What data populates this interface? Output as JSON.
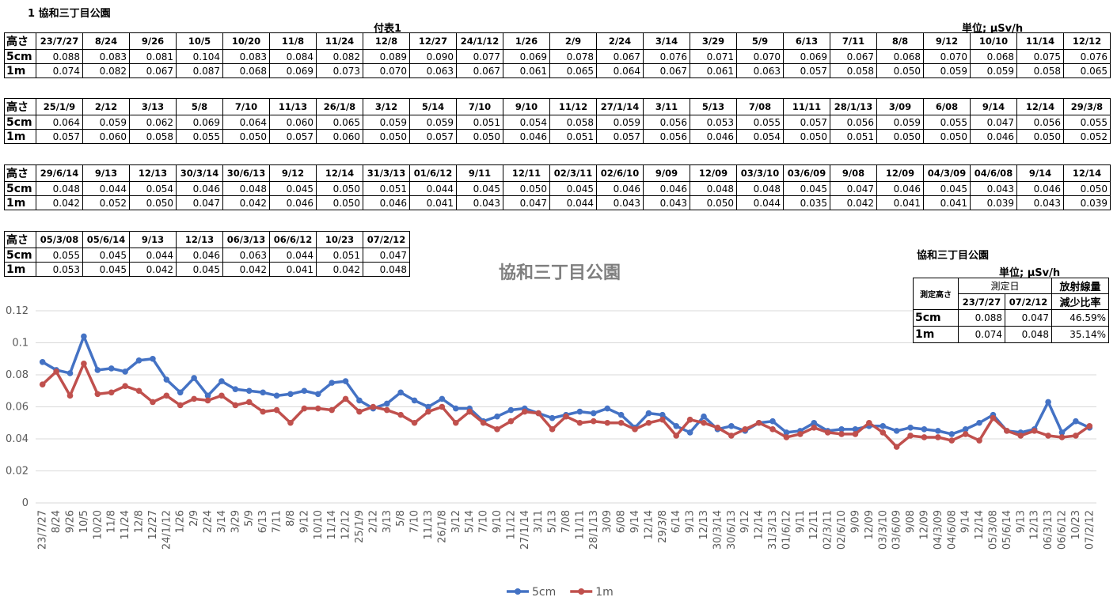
{
  "header": {
    "title": "1 協和三丁目公園",
    "subtitle": "付表1",
    "unit": "単位; μSv/h"
  },
  "tables": [
    {
      "row_labels": [
        "高さ",
        "5cm",
        "1m"
      ],
      "dates": [
        "23/7/27",
        "8/24",
        "9/26",
        "10/5",
        "10/20",
        "11/8",
        "11/24",
        "12/8",
        "12/27",
        "24/1/12",
        "1/26",
        "2/9",
        "2/24",
        "3/14",
        "3/29",
        "5/9",
        "6/13",
        "7/11",
        "8/8",
        "9/12",
        "10/10",
        "11/14",
        "12/12"
      ],
      "rows": [
        [
          "0.088",
          "0.083",
          "0.081",
          "0.104",
          "0.083",
          "0.084",
          "0.082",
          "0.089",
          "0.090",
          "0.077",
          "0.069",
          "0.078",
          "0.067",
          "0.076",
          "0.071",
          "0.070",
          "0.069",
          "0.067",
          "0.068",
          "0.070",
          "0.068",
          "0.075",
          "0.076"
        ],
        [
          "0.074",
          "0.082",
          "0.067",
          "0.087",
          "0.068",
          "0.069",
          "0.073",
          "0.070",
          "0.063",
          "0.067",
          "0.061",
          "0.065",
          "0.064",
          "0.067",
          "0.061",
          "0.063",
          "0.057",
          "0.058",
          "0.050",
          "0.059",
          "0.059",
          "0.058",
          "0.065"
        ]
      ]
    },
    {
      "row_labels": [
        "高さ",
        "5cm",
        "1m"
      ],
      "dates": [
        "25/1/9",
        "2/12",
        "3/13",
        "5/8",
        "7/10",
        "11/13",
        "26/1/8",
        "3/12",
        "5/14",
        "7/10",
        "9/10",
        "11/12",
        "27/1/14",
        "3/11",
        "5/13",
        "7/08",
        "11/11",
        "28/1/13",
        "3/09",
        "6/08",
        "9/14",
        "12/14",
        "29/3/8"
      ],
      "rows": [
        [
          "0.064",
          "0.059",
          "0.062",
          "0.069",
          "0.064",
          "0.060",
          "0.065",
          "0.059",
          "0.059",
          "0.051",
          "0.054",
          "0.058",
          "0.059",
          "0.056",
          "0.053",
          "0.055",
          "0.057",
          "0.056",
          "0.059",
          "0.055",
          "0.047",
          "0.056",
          "0.055"
        ],
        [
          "0.057",
          "0.060",
          "0.058",
          "0.055",
          "0.050",
          "0.057",
          "0.060",
          "0.050",
          "0.057",
          "0.050",
          "0.046",
          "0.051",
          "0.057",
          "0.056",
          "0.046",
          "0.054",
          "0.050",
          "0.051",
          "0.050",
          "0.050",
          "0.046",
          "0.050",
          "0.052"
        ]
      ]
    },
    {
      "row_labels": [
        "高さ",
        "5cm",
        "1m"
      ],
      "dates": [
        "29/6/14",
        "9/13",
        "12/13",
        "30/3/14",
        "30/6/13",
        "9/12",
        "12/14",
        "31/3/13",
        "01/6/12",
        "9/11",
        "12/11",
        "02/3/11",
        "02/6/10",
        "9/09",
        "12/09",
        "03/3/10",
        "03/6/09",
        "9/08",
        "12/09",
        "04/3/09",
        "04/6/08",
        "9/14",
        "12/14"
      ],
      "rows": [
        [
          "0.048",
          "0.044",
          "0.054",
          "0.046",
          "0.048",
          "0.045",
          "0.050",
          "0.051",
          "0.044",
          "0.045",
          "0.050",
          "0.045",
          "0.046",
          "0.046",
          "0.048",
          "0.048",
          "0.045",
          "0.047",
          "0.046",
          "0.045",
          "0.043",
          "0.046",
          "0.050"
        ],
        [
          "0.042",
          "0.052",
          "0.050",
          "0.047",
          "0.042",
          "0.046",
          "0.050",
          "0.046",
          "0.041",
          "0.043",
          "0.047",
          "0.044",
          "0.043",
          "0.043",
          "0.050",
          "0.044",
          "0.035",
          "0.042",
          "0.041",
          "0.041",
          "0.039",
          "0.043",
          "0.039"
        ]
      ]
    },
    {
      "row_labels": [
        "高さ",
        "5cm",
        "1m"
      ],
      "dates": [
        "05/3/08",
        "05/6/14",
        "9/13",
        "12/13",
        "06/3/13",
        "06/6/12",
        "10/23",
        "07/2/12"
      ],
      "rows": [
        [
          "0.055",
          "0.045",
          "0.044",
          "0.046",
          "0.063",
          "0.044",
          "0.051",
          "0.047"
        ],
        [
          "0.053",
          "0.045",
          "0.042",
          "0.045",
          "0.042",
          "0.041",
          "0.042",
          "0.048"
        ]
      ]
    }
  ],
  "summary": {
    "title": "協和三丁目公園",
    "unit": "単位; μSv/h",
    "headers": {
      "height": "測定高さ",
      "date": "測定日",
      "ratio": [
        "放射線量",
        "減少比率"
      ]
    },
    "dates": [
      "23/7/27",
      "07/2/12"
    ],
    "rows": [
      {
        "label": "5cm",
        "values": [
          "0.088",
          "0.047",
          "46.59%"
        ]
      },
      {
        "label": "1m",
        "values": [
          "0.074",
          "0.048",
          "35.14%"
        ]
      }
    ]
  },
  "chart_data": {
    "type": "line",
    "title": "協和三丁目公園",
    "categories": [
      "23/7/27",
      "8/24",
      "9/26",
      "10/5",
      "10/20",
      "11/8",
      "11/24",
      "12/8",
      "12/27",
      "24/1/12",
      "1/26",
      "2/9",
      "2/24",
      "3/14",
      "3/29",
      "5/9",
      "6/13",
      "7/11",
      "8/8",
      "9/12",
      "10/10",
      "11/14",
      "12/12",
      "25/1/9",
      "2/12",
      "3/13",
      "5/8",
      "7/10",
      "11/13",
      "26/1/8",
      "3/12",
      "5/14",
      "7/10",
      "9/10",
      "11/12",
      "27/1/14",
      "3/11",
      "5/13",
      "7/08",
      "11/11",
      "28/1/13",
      "3/09",
      "6/08",
      "9/14",
      "12/14",
      "29/3/8",
      "6/14",
      "9/13",
      "12/13",
      "30/3/14",
      "30/6/13",
      "9/12",
      "12/14",
      "31/3/13",
      "01/6/12",
      "9/11",
      "12/11",
      "02/3/11",
      "02/6/10",
      "9/09",
      "12/09",
      "03/3/10",
      "03/6/09",
      "9/08",
      "12/09",
      "04/3/09",
      "04/6/08",
      "9/14",
      "12/14",
      "05/3/08",
      "05/6/14",
      "9/13",
      "12/13",
      "06/3/13",
      "06/6/12",
      "10/23",
      "07/2/12"
    ],
    "series": [
      {
        "name": "5cm",
        "color": "#4472c4",
        "values": [
          0.088,
          0.083,
          0.081,
          0.104,
          0.083,
          0.084,
          0.082,
          0.089,
          0.09,
          0.077,
          0.069,
          0.078,
          0.067,
          0.076,
          0.071,
          0.07,
          0.069,
          0.067,
          0.068,
          0.07,
          0.068,
          0.075,
          0.076,
          0.064,
          0.059,
          0.062,
          0.069,
          0.064,
          0.06,
          0.065,
          0.059,
          0.059,
          0.051,
          0.054,
          0.058,
          0.059,
          0.056,
          0.053,
          0.055,
          0.057,
          0.056,
          0.059,
          0.055,
          0.047,
          0.056,
          0.055,
          0.048,
          0.044,
          0.054,
          0.046,
          0.048,
          0.045,
          0.05,
          0.051,
          0.044,
          0.045,
          0.05,
          0.045,
          0.046,
          0.046,
          0.048,
          0.048,
          0.045,
          0.047,
          0.046,
          0.045,
          0.043,
          0.046,
          0.05,
          0.055,
          0.045,
          0.044,
          0.046,
          0.063,
          0.044,
          0.051,
          0.047
        ]
      },
      {
        "name": "1m",
        "color": "#c0504d",
        "values": [
          0.074,
          0.082,
          0.067,
          0.087,
          0.068,
          0.069,
          0.073,
          0.07,
          0.063,
          0.067,
          0.061,
          0.065,
          0.064,
          0.067,
          0.061,
          0.063,
          0.057,
          0.058,
          0.05,
          0.059,
          0.059,
          0.058,
          0.065,
          0.057,
          0.06,
          0.058,
          0.055,
          0.05,
          0.057,
          0.06,
          0.05,
          0.057,
          0.05,
          0.046,
          0.051,
          0.057,
          0.056,
          0.046,
          0.054,
          0.05,
          0.051,
          0.05,
          0.05,
          0.046,
          0.05,
          0.052,
          0.042,
          0.052,
          0.05,
          0.047,
          0.042,
          0.046,
          0.05,
          0.046,
          0.041,
          0.043,
          0.047,
          0.044,
          0.043,
          0.043,
          0.05,
          0.044,
          0.035,
          0.042,
          0.041,
          0.041,
          0.039,
          0.043,
          0.039,
          0.053,
          0.045,
          0.042,
          0.045,
          0.042,
          0.041,
          0.042,
          0.048
        ]
      }
    ],
    "ylim": [
      0,
      0.12
    ],
    "yticks": [
      0,
      0.02,
      0.04,
      0.06,
      0.08,
      0.1,
      0.12
    ],
    "grid": true,
    "legend": "bottom"
  }
}
